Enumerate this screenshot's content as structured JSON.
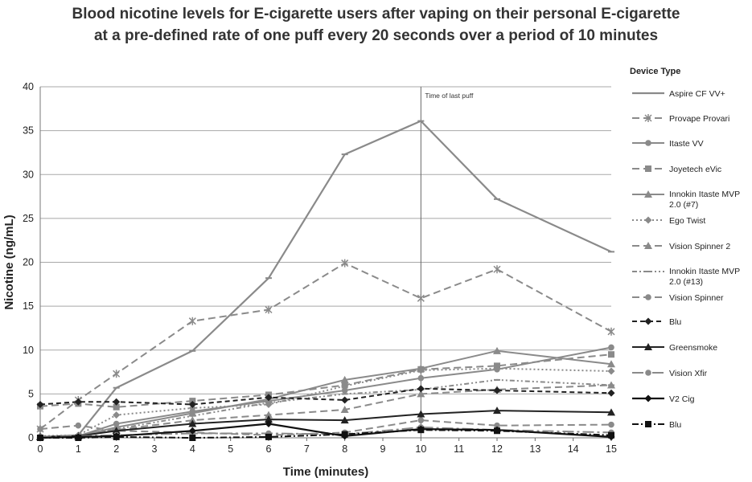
{
  "chart_data": {
    "type": "line",
    "title_lines": [
      "Blood nicotine levels for E-cigarette users after vaping on their personal E-cigarette",
      "at a pre-defined rate of one puff every 20 seconds over a period of 10 minutes"
    ],
    "xlabel": "Time (minutes)",
    "ylabel": "Nicotine (ng/mL)",
    "xlim": [
      0,
      15
    ],
    "ylim": [
      0,
      40
    ],
    "xticks": [
      0,
      1,
      2,
      3,
      4,
      5,
      6,
      7,
      8,
      9,
      10,
      11,
      12,
      13,
      14,
      15
    ],
    "yticks": [
      0,
      5,
      10,
      15,
      20,
      25,
      30,
      35,
      40
    ],
    "grid": "horizontal",
    "legend_title": "Device Type",
    "legend_position": "right",
    "annotation": {
      "x": 10,
      "text": "Time of last puff"
    },
    "series": [
      {
        "name": "Aspire CF VV+",
        "color": "#8a8a8a",
        "dash": "",
        "width": 2.2,
        "marker": "dash",
        "x": [
          0,
          1,
          2,
          4,
          6,
          8,
          10,
          12,
          15
        ],
        "y": [
          0.1,
          0.3,
          5.7,
          9.9,
          18.2,
          32.3,
          36.1,
          27.2,
          21.2
        ]
      },
      {
        "name": "Provape Provari",
        "color": "#8a8a8a",
        "dash": "9,5",
        "width": 2,
        "marker": "star",
        "x": [
          0,
          1,
          2,
          4,
          6,
          8,
          10,
          12,
          15
        ],
        "y": [
          1.0,
          4.3,
          7.3,
          13.3,
          14.6,
          19.9,
          15.9,
          19.2,
          12.1
        ]
      },
      {
        "name": "Itaste VV",
        "color": "#8a8a8a",
        "dash": "",
        "width": 2,
        "marker": "circle",
        "x": [
          0,
          1,
          2,
          4,
          6,
          8,
          10,
          12,
          15
        ],
        "y": [
          0.1,
          0.2,
          1.6,
          3.0,
          4.2,
          5.4,
          6.8,
          7.8,
          10.3
        ]
      },
      {
        "name": "Joyetech eVic",
        "color": "#8a8a8a",
        "dash": "9,5",
        "width": 2,
        "marker": "square",
        "x": [
          0,
          1,
          2,
          4,
          6,
          8,
          10,
          12,
          15
        ],
        "y": [
          3.6,
          3.9,
          3.5,
          4.2,
          4.9,
          6.0,
          7.8,
          8.2,
          9.5
        ]
      },
      {
        "name": "Innokin Itaste MVP 2.0 (#7)",
        "color": "#8a8a8a",
        "dash": "",
        "width": 2,
        "marker": "triangle",
        "x": [
          0,
          1,
          2,
          4,
          6,
          8,
          10,
          12,
          15
        ],
        "y": [
          0.1,
          0.2,
          1.2,
          2.8,
          4.4,
          6.6,
          7.9,
          9.9,
          8.4
        ]
      },
      {
        "name": "Ego Twist",
        "color": "#8a8a8a",
        "dash": "2,3",
        "width": 2,
        "marker": "diamond",
        "x": [
          0,
          1,
          2,
          4,
          6,
          8,
          10,
          12,
          15
        ],
        "y": [
          0.2,
          0.3,
          2.6,
          3.4,
          3.8,
          5.9,
          7.7,
          7.9,
          7.6
        ]
      },
      {
        "name": "Vision Spinner 2",
        "color": "#8a8a8a",
        "dash": "9,5",
        "width": 2,
        "marker": "triangle",
        "x": [
          0,
          1,
          2,
          4,
          6,
          8,
          10,
          12,
          15
        ],
        "y": [
          0.1,
          0.2,
          0.9,
          2.0,
          2.6,
          3.2,
          5.0,
          5.5,
          6.0
        ]
      },
      {
        "name": "Innokin Itaste MVP 2.0 (#13)",
        "color": "#8a8a8a",
        "dash": "6,3,2,3,2,3",
        "width": 2,
        "marker": "dash",
        "x": [
          0,
          1,
          2,
          4,
          6,
          8,
          10,
          12,
          15
        ],
        "y": [
          0.1,
          0.2,
          1.0,
          2.5,
          4.0,
          5.0,
          5.5,
          6.6,
          6.0
        ]
      },
      {
        "name": "Vision Spinner",
        "color": "#8a8a8a",
        "dash": "9,5",
        "width": 2,
        "marker": "circle",
        "x": [
          0,
          1,
          2,
          4,
          6,
          8,
          10,
          12,
          15
        ],
        "y": [
          1.0,
          1.4,
          0.8,
          0.6,
          0.3,
          0.6,
          2.0,
          1.4,
          1.5
        ]
      },
      {
        "name": "Blu",
        "color": "#222222",
        "dash": "6,4",
        "width": 2,
        "marker": "diamond",
        "x": [
          0,
          1,
          2,
          4,
          6,
          8,
          10,
          12,
          15
        ],
        "y": [
          3.8,
          4.1,
          4.1,
          3.8,
          4.6,
          4.3,
          5.6,
          5.4,
          5.1
        ]
      },
      {
        "name": "Greensmoke",
        "color": "#222222",
        "dash": "",
        "width": 2,
        "marker": "triangle",
        "x": [
          0,
          1,
          2,
          4,
          6,
          8,
          10,
          12,
          15
        ],
        "y": [
          0.1,
          0.2,
          0.8,
          1.6,
          2.1,
          2.0,
          2.7,
          3.1,
          2.9
        ]
      },
      {
        "name": "Vision Xfir",
        "color": "#8a8a8a",
        "dash": "14,4,3,4",
        "width": 2,
        "marker": "circle",
        "x": [
          0,
          1,
          2,
          4,
          6,
          8,
          10,
          12,
          15
        ],
        "y": [
          0.1,
          0.2,
          0.3,
          0.5,
          0.5,
          0.4,
          1.2,
          0.9,
          0.6
        ]
      },
      {
        "name": "V2 Cig",
        "color": "#111111",
        "dash": "",
        "width": 2.2,
        "marker": "diamond",
        "x": [
          0,
          1,
          2,
          4,
          6,
          8,
          10,
          12,
          15
        ],
        "y": [
          0.0,
          0.1,
          0.2,
          0.8,
          1.6,
          0.2,
          1.0,
          0.9,
          0.1
        ]
      },
      {
        "name": "Blu",
        "color": "#111111",
        "dash": "8,3,2,3",
        "width": 2,
        "marker": "square",
        "x": [
          0,
          1,
          2,
          4,
          6,
          8,
          10,
          12,
          15
        ],
        "y": [
          0.0,
          0.0,
          0.1,
          0.0,
          0.1,
          0.4,
          0.9,
          0.8,
          0.3
        ]
      }
    ]
  }
}
